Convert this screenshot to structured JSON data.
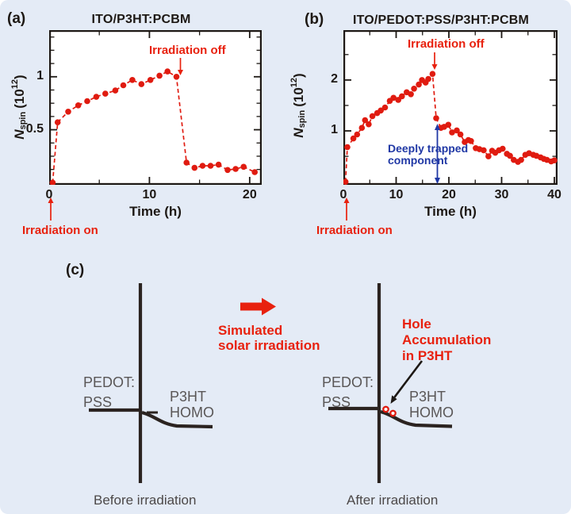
{
  "figure": {
    "background_color": "#e4ebf6",
    "ink_color": "#1d1814",
    "red_color": "#e8210e",
    "blue_color": "#2038a5",
    "gray_color": "#5a5757",
    "panels": {
      "a": {
        "label": "(a)",
        "title": "ITO/P3HT:PCBM",
        "x_axis_label": "Time (h)",
        "y_label": {
          "symbol": "N",
          "subscript": "spin",
          "unit_open": "(10",
          "exponent": "12",
          "unit_close": ")"
        },
        "irradiation_off": "Irradiation off",
        "irradiation_on": "Irradiation on"
      },
      "b": {
        "label": "(b)",
        "title": "ITO/PEDOT:PSS/P3HT:PCBM",
        "x_axis_label": "Time (h)",
        "y_label": {
          "symbol": "N",
          "subscript": "spin",
          "unit_open": "(10",
          "exponent": "12",
          "unit_close": ")"
        },
        "irradiation_off": "Irradiation off",
        "irradiation_on": "Irradiation on",
        "deeply_trapped": {
          "line1": "Deeply trapped",
          "line2": "component"
        }
      },
      "c": {
        "label": "(c)",
        "process": {
          "line1": "Simulated",
          "line2": "solar irradiation"
        },
        "hole": {
          "line1": "Hole",
          "line2": "Accumulation",
          "line3": "in P3HT"
        },
        "before": {
          "left_material_line1": "PEDOT:",
          "left_material_line2": "PSS",
          "right_material_line1": "P3HT",
          "right_material_line2": "HOMO",
          "caption": "Before irradiation"
        },
        "after": {
          "left_material_line1": "PEDOT:",
          "left_material_line2": "PSS",
          "right_material_line1": "P3HT",
          "right_material_line2": "HOMO",
          "caption": "After irradiation"
        }
      }
    }
  },
  "chart_data": [
    {
      "type": "scatter",
      "title": "ITO/P3HT:PCBM",
      "xlabel": "Time (h)",
      "ylabel": "Nspin (10^12)",
      "xlim": [
        0,
        21.2
      ],
      "ylim": [
        -0.02,
        1.44
      ],
      "x_ticks": [
        0,
        10,
        20
      ],
      "x_tick_labels": [
        "0",
        "10",
        "20"
      ],
      "x_minor_step": 5,
      "y_ticks": [
        0.5,
        1
      ],
      "y_tick_labels": [
        "0.5",
        "1"
      ],
      "y_minor_step": 0.125,
      "line_style": "dashed",
      "color": "#e01b10",
      "x": [
        0.35,
        0.85,
        1.9,
        2.9,
        3.8,
        4.7,
        5.6,
        6.6,
        7.4,
        8.3,
        9.2,
        10.1,
        11.0,
        11.8,
        12.7,
        13.7,
        14.5,
        15.3,
        16.1,
        16.9,
        17.8,
        18.6,
        19.4,
        20.5
      ],
      "y": [
        0.0,
        0.57,
        0.67,
        0.73,
        0.77,
        0.81,
        0.84,
        0.87,
        0.92,
        0.97,
        0.93,
        0.97,
        1.01,
        1.05,
        1.0,
        0.19,
        0.14,
        0.16,
        0.16,
        0.17,
        0.12,
        0.13,
        0.15,
        0.1
      ],
      "annotations": [
        "Irradiation off",
        "Irradiation on"
      ]
    },
    {
      "type": "scatter",
      "title": "ITO/PEDOT:PSS/P3HT:PCBM",
      "xlabel": "Time (h)",
      "ylabel": "Nspin (10^12)",
      "xlim": [
        0,
        40.6
      ],
      "ylim": [
        -0.06,
        2.98
      ],
      "x_ticks": [
        0,
        10,
        20,
        30,
        40
      ],
      "x_tick_labels": [
        "0",
        "10",
        "20",
        "30",
        "40"
      ],
      "x_minor_step": 5,
      "y_ticks": [
        1,
        2
      ],
      "y_tick_labels": [
        "1",
        "2"
      ],
      "y_minor_step": 0.5,
      "line_style": "dashed",
      "color": "#e01b10",
      "x": [
        0.4,
        0.75,
        1.9,
        2.6,
        3.5,
        4.1,
        4.8,
        5.5,
        6.4,
        7.1,
        7.9,
        8.8,
        9.5,
        10.4,
        11.1,
        12.0,
        12.8,
        13.4,
        14.3,
        14.9,
        15.6,
        16.1,
        16.9,
        17.6,
        18.5,
        19.1,
        19.9,
        20.6,
        21.5,
        22.2,
        23.0,
        23.7,
        24.2,
        25.1,
        25.8,
        26.6,
        27.5,
        28.2,
        28.8,
        29.5,
        30.2,
        31.0,
        31.6,
        32.3,
        33.1,
        33.7,
        34.5,
        35.2,
        36.0,
        36.6,
        37.4,
        38.0,
        38.6,
        39.4,
        40.0
      ],
      "y": [
        0.0,
        0.68,
        0.85,
        0.93,
        1.06,
        1.21,
        1.13,
        1.29,
        1.35,
        1.4,
        1.46,
        1.59,
        1.65,
        1.61,
        1.68,
        1.76,
        1.72,
        1.83,
        1.91,
        2.0,
        1.95,
        2.02,
        2.12,
        1.25,
        1.06,
        1.08,
        1.12,
        0.97,
        1.01,
        0.93,
        0.78,
        0.82,
        0.8,
        0.66,
        0.64,
        0.62,
        0.5,
        0.61,
        0.57,
        0.62,
        0.65,
        0.55,
        0.51,
        0.43,
        0.39,
        0.43,
        0.53,
        0.56,
        0.53,
        0.51,
        0.48,
        0.45,
        0.43,
        0.4,
        0.42
      ],
      "annotations": [
        "Irradiation off",
        "Irradiation on",
        "Deeply trapped component"
      ]
    }
  ]
}
